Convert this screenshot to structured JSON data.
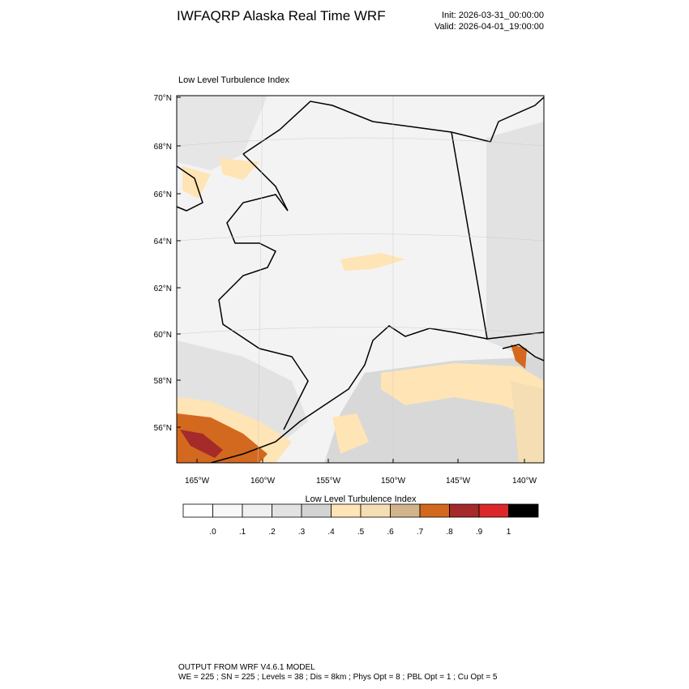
{
  "header": {
    "title": "IWFAQRP Alaska Real Time WRF",
    "init": "Init: 2026-03-31_00:00:00",
    "valid": "Valid: 2026-04-01_19:00:00"
  },
  "map": {
    "title": "Low Level Turbulence Index",
    "lat_labels": [
      "70°N",
      "68°N",
      "66°N",
      "64°N",
      "62°N",
      "60°N",
      "58°N",
      "56°N"
    ],
    "lon_labels": [
      "165°W",
      "160°W",
      "155°W",
      "150°W",
      "145°W",
      "140°W"
    ]
  },
  "colorbar": {
    "title": "Low Level Turbulence Index",
    "labels": [
      ".0",
      ".1",
      ".2",
      ".3",
      ".4",
      ".5",
      ".6",
      ".7",
      ".8",
      ".9",
      "1"
    ],
    "colors": [
      "#ffffff",
      "#f8f8f8",
      "#f0f0f0",
      "#e2e2e2",
      "#d3d3d3",
      "#ffe4b5",
      "#f5deb3",
      "#d2b48c",
      "#d2691e",
      "#a52a2a",
      "#dc2828",
      "#000000"
    ]
  },
  "footer": {
    "line1": "OUTPUT FROM WRF V4.6.1 MODEL",
    "line2": "WE = 225 ; SN = 225 ; Levels = 38 ; Dis = 8km ; Phys Opt = 8 ; PBL Opt = 1 ; Cu Opt = 5"
  }
}
